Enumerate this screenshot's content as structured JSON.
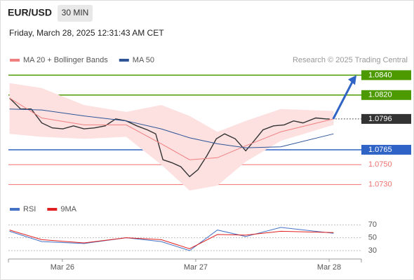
{
  "header": {
    "symbol": "EUR/USD",
    "interval": "30 MIN",
    "timestamp": "Friday, March 28, 2025 12:31:43 AM CET"
  },
  "credit": "Research © 2025 Trading Central",
  "chart_data": [
    {
      "type": "line",
      "xlim": [
        -9.7,
        53.8
      ],
      "ylim": [
        1.0715,
        1.0848
      ],
      "xticks": [
        {
          "value": 0,
          "label": "Mar 26"
        },
        {
          "value": 24,
          "label": "Mar 27"
        },
        {
          "value": 48,
          "label": "Mar 28"
        }
      ],
      "series": [
        {
          "color": "#333333",
          "x": [
            -9.5,
            -7.5,
            -5.6,
            -3.7,
            -1.8,
            0.1,
            2.0,
            3.9,
            5.8,
            7.7,
            9.6,
            11.5,
            13.4,
            15.3,
            16.8,
            18.1,
            19.7,
            21.3,
            22.9,
            24.4,
            26.0,
            27.7,
            29.2,
            31.1,
            33.0,
            34.5,
            36.1,
            38.0,
            39.9,
            41.6,
            43.3,
            45.6,
            47.5,
            48.1
          ],
          "values": [
            1.0817,
            1.0806,
            1.0806,
            1.0792,
            1.0787,
            1.0786,
            1.0789,
            1.0786,
            1.0787,
            1.0789,
            1.0796,
            1.0794,
            1.0789,
            1.0785,
            1.0781,
            1.0755,
            1.0752,
            1.0748,
            1.0738,
            1.0745,
            1.0759,
            1.0776,
            1.0781,
            1.0776,
            1.0764,
            1.0774,
            1.0785,
            1.0789,
            1.079,
            1.0794,
            1.0792,
            1.0797,
            1.0796,
            1.0796
          ]
        },
        {
          "name": "MA 20 + Bollinger Bands",
          "color": "#f08080",
          "band_color": "#fde0e0",
          "x": [
            -9.5,
            -3.7,
            3.9,
            11.5,
            17.8,
            22.9,
            27.9,
            33.0,
            39.3,
            48.8
          ],
          "values": [
            1.0817,
            1.0797,
            1.079,
            1.079,
            1.0771,
            1.0755,
            1.0757,
            1.0769,
            1.0783,
            1.0796
          ],
          "upper": [
            1.0832,
            1.0827,
            1.081,
            1.0803,
            1.081,
            1.0799,
            1.0783,
            1.0794,
            1.0806,
            1.0804
          ],
          "lower": [
            1.0781,
            1.0778,
            1.0776,
            1.0778,
            1.075,
            1.0724,
            1.0729,
            1.0753,
            1.0774,
            1.079
          ]
        },
        {
          "name": "MA 50",
          "color": "#2f5597",
          "x": [
            -9.5,
            -3.7,
            3.9,
            11.5,
            17.8,
            22.9,
            27.9,
            33.0,
            39.3,
            48.8
          ],
          "values": [
            1.0806,
            1.0805,
            1.0799,
            1.0794,
            1.0786,
            1.0777,
            1.0771,
            1.0767,
            1.0768,
            1.0781
          ]
        }
      ],
      "levels": [
        {
          "value": 1.084,
          "label": "1.0840",
          "color": "#4c9a00",
          "style": "box"
        },
        {
          "value": 1.082,
          "label": "1.0820",
          "color": "#4c9a00",
          "style": "box"
        },
        {
          "value": 1.0796,
          "label": "1.0796",
          "color": "#333333",
          "style": "current"
        },
        {
          "value": 1.0765,
          "label": "1.0765",
          "color": "#2f63c5",
          "style": "box"
        },
        {
          "value": 1.075,
          "label": "1.0750",
          "color": "#f07070",
          "style": "text"
        },
        {
          "value": 1.073,
          "label": "1.0730",
          "color": "#f07070",
          "style": "text"
        }
      ]
    },
    {
      "type": "line",
      "xlim": [
        -9.7,
        53.8
      ],
      "ylim": [
        17,
        80
      ],
      "yticks": [
        70,
        50,
        30
      ],
      "series": [
        {
          "name": "RSI",
          "color": "#4472c4",
          "x": [
            -9.5,
            -3.7,
            3.9,
            11.5,
            17.8,
            22.9,
            27.9,
            33.0,
            39.3,
            48.8
          ],
          "values": [
            60,
            44,
            41,
            50,
            44,
            30,
            62,
            52,
            66,
            57
          ]
        },
        {
          "name": "9MA",
          "color": "#e02020",
          "x": [
            -9.5,
            -3.7,
            3.9,
            11.5,
            17.8,
            22.9,
            27.9,
            33.0,
            39.3,
            48.8
          ],
          "values": [
            62,
            47,
            42,
            50,
            47,
            33,
            55,
            54,
            60,
            58
          ]
        }
      ]
    }
  ]
}
